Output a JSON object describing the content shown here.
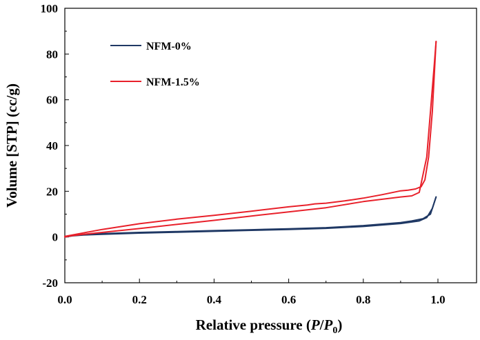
{
  "chart_data": {
    "type": "line",
    "xlabel": "Relative pressure (P/P0)",
    "xlabel_parts": [
      "Relative pressure (",
      "P",
      "/",
      "P",
      "0",
      ")"
    ],
    "ylabel": "Volume [STP] (cc/g)",
    "xlim": [
      0.0,
      1.0
    ],
    "ylim": [
      -20,
      100
    ],
    "xticks": [
      "0.0",
      "0.2",
      "0.4",
      "0.6",
      "0.8",
      "1.0"
    ],
    "yticks": [
      "-20",
      "0",
      "20",
      "40",
      "60",
      "80",
      "100"
    ],
    "legend_placement": "upper-left",
    "series": [
      {
        "name": "NFM-0%",
        "color": "#1f3864",
        "adsorption": {
          "x": [
            0.0,
            0.02,
            0.05,
            0.1,
            0.2,
            0.3,
            0.4,
            0.5,
            0.6,
            0.7,
            0.8,
            0.9,
            0.95,
            0.97,
            0.985,
            0.995
          ],
          "y": [
            0.0,
            0.5,
            0.9,
            1.2,
            1.7,
            2.1,
            2.5,
            2.9,
            3.3,
            3.8,
            4.6,
            5.9,
            7.0,
            8.5,
            12.5,
            17.5
          ]
        },
        "desorption": {
          "x": [
            0.995,
            0.98,
            0.96,
            0.93,
            0.9,
            0.8,
            0.7,
            0.6,
            0.5,
            0.4,
            0.3,
            0.2,
            0.1,
            0.05,
            0.02,
            0.0
          ],
          "y": [
            17.5,
            10.0,
            8.0,
            7.0,
            6.3,
            5.0,
            4.1,
            3.6,
            3.2,
            2.8,
            2.4,
            2.0,
            1.5,
            1.1,
            0.7,
            0.2
          ]
        }
      },
      {
        "name": "NFM-1.5%",
        "color": "#e8202a",
        "adsorption": {
          "x": [
            0.0,
            0.02,
            0.05,
            0.1,
            0.2,
            0.3,
            0.4,
            0.5,
            0.6,
            0.7,
            0.8,
            0.9,
            0.93,
            0.95,
            0.97,
            0.98,
            0.99,
            0.995
          ],
          "y": [
            0.0,
            0.6,
            1.2,
            2.0,
            3.7,
            5.5,
            7.3,
            9.2,
            11.0,
            12.8,
            15.5,
            17.5,
            18.0,
            19.5,
            35.0,
            55.0,
            75.0,
            85.5
          ]
        },
        "desorption": {
          "x": [
            0.995,
            0.985,
            0.975,
            0.965,
            0.955,
            0.94,
            0.92,
            0.9,
            0.85,
            0.8,
            0.75,
            0.7,
            0.67,
            0.65,
            0.6,
            0.5,
            0.4,
            0.3,
            0.2,
            0.1,
            0.05,
            0.02,
            0.0
          ],
          "y": [
            85.5,
            55.0,
            35.0,
            25.0,
            22.0,
            21.0,
            20.5,
            20.2,
            18.5,
            17.0,
            15.8,
            14.8,
            14.5,
            14.0,
            13.2,
            11.3,
            9.5,
            7.8,
            5.8,
            3.3,
            1.8,
            0.9,
            0.3
          ]
        }
      }
    ]
  }
}
